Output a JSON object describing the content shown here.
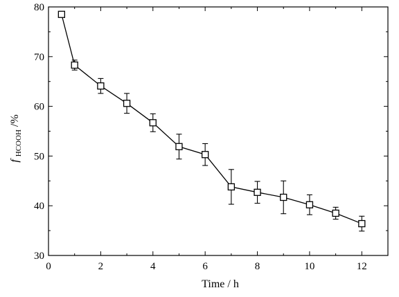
{
  "chart_data": {
    "type": "line",
    "title": "",
    "xlabel": "Time / h",
    "ylabel": {
      "symbol": "f",
      "subscript": "HCOOH",
      "unit": "/%"
    },
    "xlim": [
      0,
      13
    ],
    "ylim": [
      30,
      80
    ],
    "xticks": [
      0,
      2,
      4,
      6,
      8,
      10,
      12
    ],
    "yticks": [
      30,
      40,
      50,
      60,
      70,
      80
    ],
    "grid": false,
    "legend": "none",
    "marker": "open-square",
    "series": [
      {
        "x": [
          0.5,
          1,
          2,
          3,
          4,
          5,
          6,
          7,
          8,
          9,
          10,
          11,
          12
        ],
        "y": [
          78.5,
          68.3,
          64.1,
          60.6,
          56.7,
          51.9,
          50.3,
          43.8,
          42.7,
          41.7,
          40.2,
          38.5,
          36.4
        ],
        "error": [
          0.0,
          1.0,
          1.5,
          2.0,
          1.8,
          2.5,
          2.2,
          3.5,
          2.2,
          3.3,
          2.0,
          1.2,
          1.5
        ]
      }
    ]
  }
}
